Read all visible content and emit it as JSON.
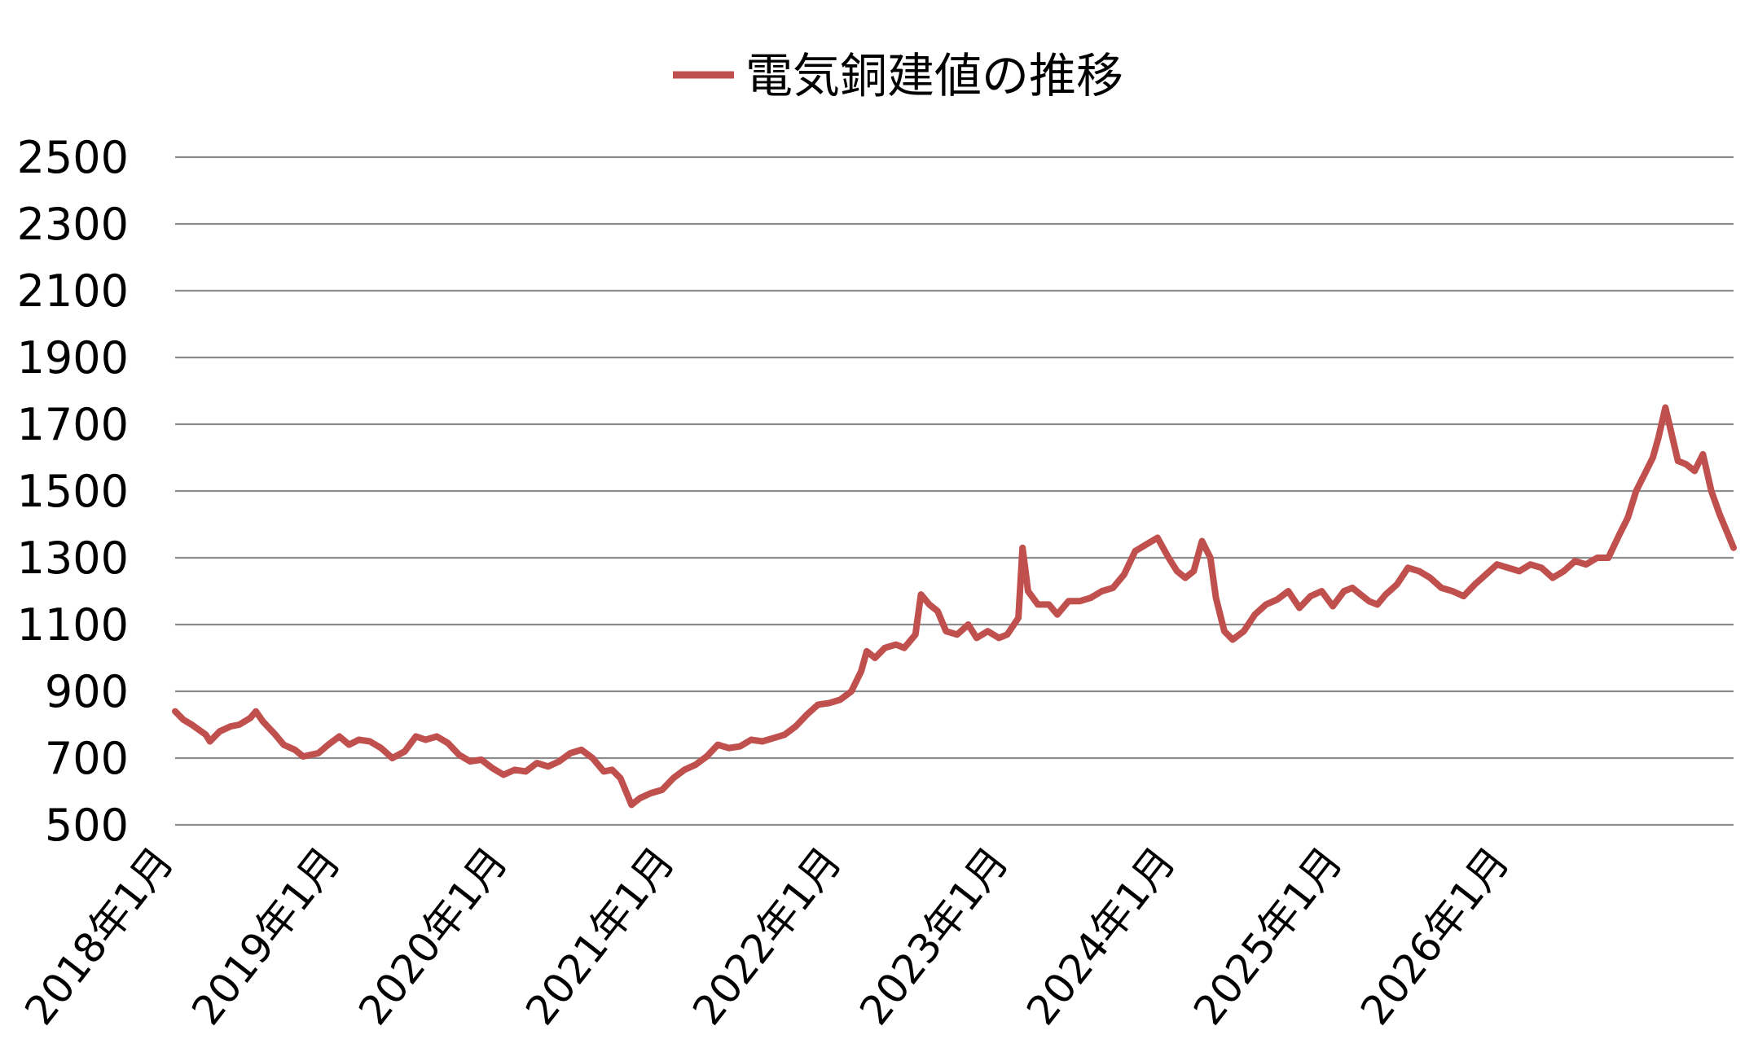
{
  "chart_data": {
    "type": "line",
    "title": "",
    "xlabel": "",
    "ylabel": "",
    "legend_position": "top-center",
    "grid": true,
    "ylim": [
      500,
      2500
    ],
    "yticks": [
      500,
      700,
      900,
      1100,
      1300,
      1500,
      1700,
      1900,
      2100,
      2300,
      2500
    ],
    "xlim": [
      0,
      112
    ],
    "xticks": [
      {
        "x": 0,
        "label": "2018年1月"
      },
      {
        "x": 12,
        "label": "2019年1月"
      },
      {
        "x": 24,
        "label": "2020年1月"
      },
      {
        "x": 36,
        "label": "2021年1月"
      },
      {
        "x": 48,
        "label": "2022年1月"
      },
      {
        "x": 60,
        "label": "2023年1月"
      },
      {
        "x": 72,
        "label": "2024年1月"
      },
      {
        "x": 84,
        "label": "2025年1月"
      },
      {
        "x": 96,
        "label": "2026年1月"
      }
    ],
    "series": [
      {
        "name": "電気銅建値の推移",
        "color": "#c0504d",
        "points": [
          [
            0,
            840
          ],
          [
            0.6,
            815
          ],
          [
            1.2,
            800
          ],
          [
            2.2,
            770
          ],
          [
            2.5,
            750
          ],
          [
            3.2,
            780
          ],
          [
            4,
            795
          ],
          [
            4.6,
            800
          ],
          [
            5.4,
            820
          ],
          [
            5.8,
            840
          ],
          [
            6.3,
            810
          ],
          [
            7.2,
            770
          ],
          [
            7.8,
            740
          ],
          [
            8.6,
            725
          ],
          [
            9.2,
            705
          ],
          [
            10.3,
            715
          ],
          [
            11,
            740
          ],
          [
            11.8,
            765
          ],
          [
            12.5,
            740
          ],
          [
            13.2,
            755
          ],
          [
            14,
            750
          ],
          [
            14.8,
            730
          ],
          [
            15.6,
            700
          ],
          [
            16.5,
            720
          ],
          [
            17.3,
            765
          ],
          [
            18,
            755
          ],
          [
            18.8,
            765
          ],
          [
            19.6,
            745
          ],
          [
            20.4,
            710
          ],
          [
            21.2,
            690
          ],
          [
            22,
            695
          ],
          [
            22.8,
            670
          ],
          [
            23.6,
            650
          ],
          [
            24.4,
            665
          ],
          [
            25.2,
            660
          ],
          [
            26,
            685
          ],
          [
            26.8,
            675
          ],
          [
            27.6,
            690
          ],
          [
            28.4,
            715
          ],
          [
            29.2,
            725
          ],
          [
            30,
            700
          ],
          [
            30.8,
            660
          ],
          [
            31.4,
            665
          ],
          [
            32,
            640
          ],
          [
            32.4,
            600
          ],
          [
            32.8,
            560
          ],
          [
            33.4,
            580
          ],
          [
            34.2,
            595
          ],
          [
            35,
            605
          ],
          [
            35.8,
            640
          ],
          [
            36.6,
            665
          ],
          [
            37.4,
            680
          ],
          [
            38.2,
            705
          ],
          [
            39,
            740
          ],
          [
            39.8,
            730
          ],
          [
            40.6,
            735
          ],
          [
            41.4,
            755
          ],
          [
            42.2,
            750
          ],
          [
            43,
            760
          ],
          [
            43.8,
            770
          ],
          [
            44.6,
            795
          ],
          [
            45.4,
            830
          ],
          [
            46.2,
            860
          ],
          [
            47,
            865
          ],
          [
            47.8,
            875
          ],
          [
            48.6,
            900
          ],
          [
            49.3,
            960
          ],
          [
            49.7,
            1020
          ],
          [
            50.3,
            1000
          ],
          [
            51,
            1030
          ],
          [
            51.8,
            1040
          ],
          [
            52.4,
            1030
          ],
          [
            53.2,
            1070
          ],
          [
            53.6,
            1190
          ],
          [
            54.2,
            1160
          ],
          [
            54.8,
            1140
          ],
          [
            55.4,
            1080
          ],
          [
            56.2,
            1070
          ],
          [
            57,
            1100
          ],
          [
            57.6,
            1060
          ],
          [
            58.4,
            1080
          ],
          [
            59.2,
            1060
          ],
          [
            59.8,
            1070
          ],
          [
            60.6,
            1120
          ],
          [
            60.9,
            1330
          ],
          [
            61.3,
            1200
          ],
          [
            62,
            1160
          ],
          [
            62.8,
            1160
          ],
          [
            63.4,
            1130
          ],
          [
            64.2,
            1170
          ],
          [
            65,
            1170
          ],
          [
            65.8,
            1180
          ],
          [
            66.6,
            1200
          ],
          [
            67.4,
            1210
          ],
          [
            68.2,
            1250
          ],
          [
            69,
            1320
          ],
          [
            69.8,
            1340
          ],
          [
            70.6,
            1360
          ],
          [
            71.4,
            1300
          ],
          [
            72,
            1260
          ],
          [
            72.6,
            1240
          ],
          [
            73.2,
            1260
          ],
          [
            73.8,
            1350
          ],
          [
            74.4,
            1300
          ],
          [
            74.8,
            1180
          ],
          [
            75.4,
            1080
          ],
          [
            76,
            1055
          ],
          [
            76.8,
            1080
          ],
          [
            77.6,
            1130
          ],
          [
            78.4,
            1160
          ],
          [
            79.2,
            1175
          ],
          [
            80,
            1200
          ],
          [
            80.8,
            1150
          ],
          [
            81.6,
            1185
          ],
          [
            82.4,
            1200
          ],
          [
            83.2,
            1155
          ],
          [
            84,
            1200
          ],
          [
            84.6,
            1210
          ],
          [
            85.2,
            1190
          ],
          [
            85.8,
            1170
          ],
          [
            86.4,
            1160
          ],
          [
            87,
            1190
          ],
          [
            87.8,
            1220
          ],
          [
            88.6,
            1270
          ],
          [
            89.4,
            1260
          ],
          [
            90.2,
            1240
          ],
          [
            91,
            1210
          ],
          [
            91.8,
            1200
          ],
          [
            92.6,
            1185
          ],
          [
            93.4,
            1220
          ],
          [
            94.2,
            1250
          ],
          [
            95,
            1280
          ],
          [
            95.8,
            1270
          ],
          [
            96.6,
            1260
          ],
          [
            97.4,
            1280
          ],
          [
            98.2,
            1270
          ],
          [
            99,
            1240
          ],
          [
            99.8,
            1260
          ],
          [
            100.6,
            1290
          ],
          [
            101.4,
            1280
          ],
          [
            102.2,
            1300
          ],
          [
            103,
            1300
          ],
          [
            103.8,
            1370
          ],
          [
            104.4,
            1420
          ],
          [
            105,
            1500
          ],
          [
            105.6,
            1550
          ],
          [
            106.2,
            1600
          ],
          [
            106.6,
            1660
          ],
          [
            107.1,
            1750
          ],
          [
            107.5,
            1680
          ],
          [
            108,
            1590
          ],
          [
            108.6,
            1580
          ],
          [
            109.2,
            1560
          ],
          [
            109.8,
            1610
          ],
          [
            110.4,
            1500
          ],
          [
            111,
            1430
          ],
          [
            111.6,
            1370
          ],
          [
            112,
            1330
          ]
        ]
      }
    ]
  }
}
